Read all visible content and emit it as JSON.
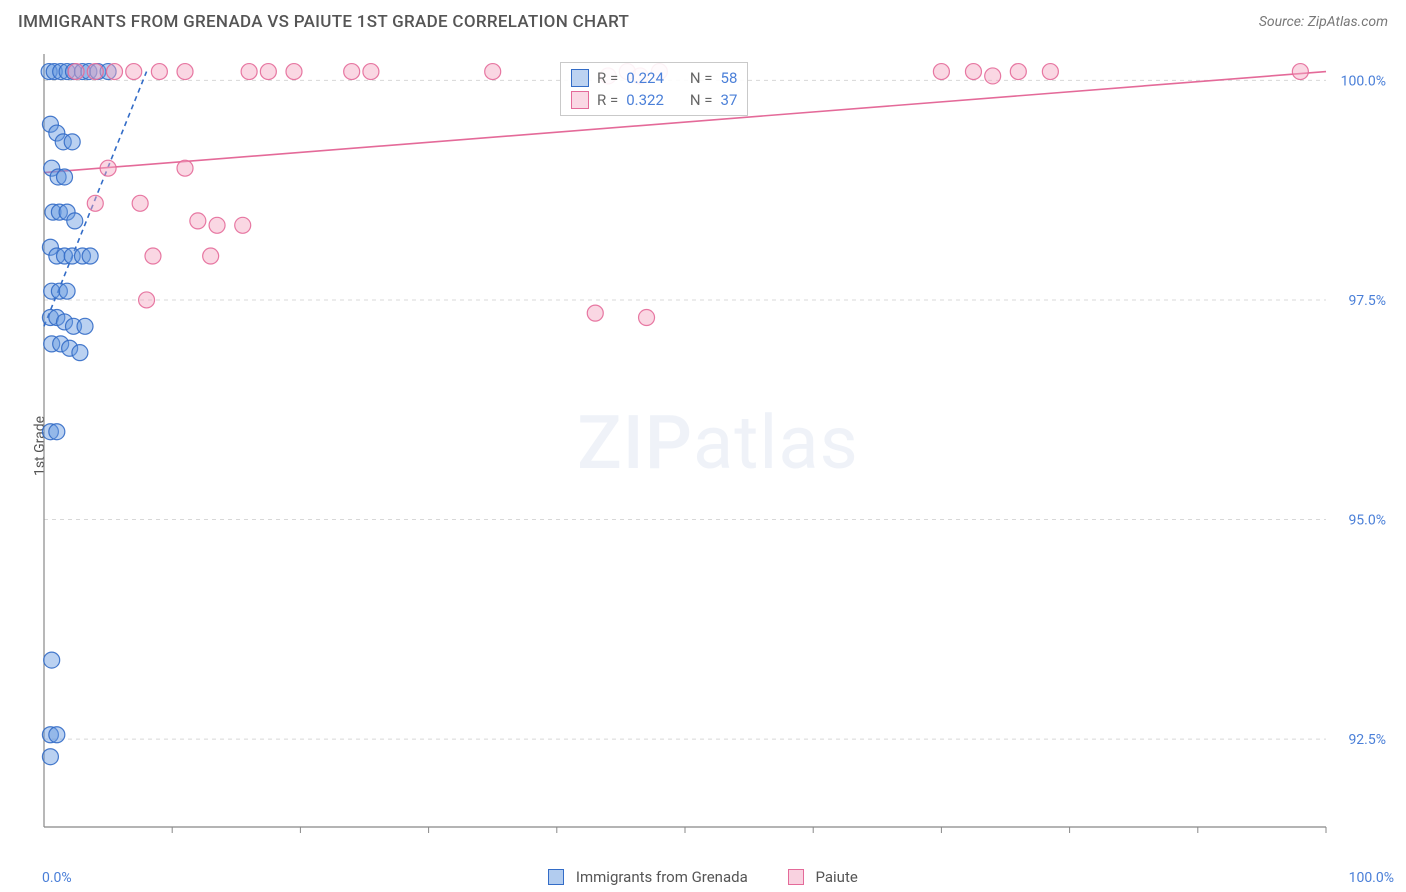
{
  "title": "IMMIGRANTS FROM GRENADA VS PAIUTE 1ST GRADE CORRELATION CHART",
  "source": "Source: ZipAtlas.com",
  "watermark_zip": "ZIP",
  "watermark_atlas": "atlas",
  "yaxis_label": "1st Grade",
  "chart": {
    "type": "scatter",
    "background_color": "#ffffff",
    "grid_color": "#d8d8d8",
    "axis_color": "#888888",
    "xlim": [
      0,
      100
    ],
    "ylim": [
      91.5,
      100.3
    ],
    "x_tick_positions": [
      10,
      20,
      30,
      40,
      50,
      60,
      70,
      80,
      90,
      100
    ],
    "y_ticks": [
      {
        "value": 92.5,
        "label": "92.5%"
      },
      {
        "value": 95.0,
        "label": "95.0%"
      },
      {
        "value": 97.5,
        "label": "97.5%"
      },
      {
        "value": 100.0,
        "label": "100.0%"
      }
    ],
    "x_range_labels": {
      "min": "0.0%",
      "max": "100.0%"
    },
    "marker_radius": 8,
    "marker_opacity": 0.45,
    "line_width": 1.6,
    "series": [
      {
        "id": "grenada",
        "name": "Immigrants from Grenada",
        "fill_color": "#6699e0",
        "stroke_color": "#336cc7",
        "R": 0.224,
        "N": 58,
        "trend": {
          "x1": 0,
          "y1": 97.2,
          "x2": 8,
          "y2": 100.1,
          "dashed": true
        },
        "points": [
          [
            0.4,
            100.1
          ],
          [
            0.8,
            100.1
          ],
          [
            1.3,
            100.1
          ],
          [
            1.8,
            100.1
          ],
          [
            2.3,
            100.1
          ],
          [
            3.0,
            100.1
          ],
          [
            3.5,
            100.1
          ],
          [
            4.2,
            100.1
          ],
          [
            5.0,
            100.1
          ],
          [
            0.5,
            99.5
          ],
          [
            1.0,
            99.4
          ],
          [
            1.5,
            99.3
          ],
          [
            2.2,
            99.3
          ],
          [
            0.6,
            99.0
          ],
          [
            1.1,
            98.9
          ],
          [
            1.6,
            98.9
          ],
          [
            0.7,
            98.5
          ],
          [
            1.2,
            98.5
          ],
          [
            1.8,
            98.5
          ],
          [
            2.4,
            98.4
          ],
          [
            0.5,
            98.1
          ],
          [
            1.0,
            98.0
          ],
          [
            1.6,
            98.0
          ],
          [
            2.2,
            98.0
          ],
          [
            3.0,
            98.0
          ],
          [
            3.6,
            98.0
          ],
          [
            0.6,
            97.6
          ],
          [
            1.2,
            97.6
          ],
          [
            1.8,
            97.6
          ],
          [
            0.5,
            97.3
          ],
          [
            1.0,
            97.3
          ],
          [
            1.6,
            97.25
          ],
          [
            2.3,
            97.2
          ],
          [
            3.2,
            97.2
          ],
          [
            0.6,
            97.0
          ],
          [
            1.3,
            97.0
          ],
          [
            2.0,
            96.95
          ],
          [
            2.8,
            96.9
          ],
          [
            0.5,
            96.0
          ],
          [
            1.0,
            96.0
          ],
          [
            0.6,
            93.4
          ],
          [
            0.5,
            92.55
          ],
          [
            1.0,
            92.55
          ],
          [
            0.5,
            92.3
          ]
        ]
      },
      {
        "id": "paiute",
        "name": "Paiute",
        "fill_color": "#f4a6c2",
        "stroke_color": "#e46a99",
        "R": 0.322,
        "N": 37,
        "trend": {
          "x1": 0,
          "y1": 98.95,
          "x2": 100,
          "y2": 100.1,
          "dashed": false
        },
        "points": [
          [
            2.5,
            100.1
          ],
          [
            4.0,
            100.1
          ],
          [
            5.5,
            100.1
          ],
          [
            7.0,
            100.1
          ],
          [
            9.0,
            100.1
          ],
          [
            11.0,
            100.1
          ],
          [
            16.0,
            100.1
          ],
          [
            17.5,
            100.1
          ],
          [
            19.5,
            100.1
          ],
          [
            24.0,
            100.1
          ],
          [
            25.5,
            100.1
          ],
          [
            35.0,
            100.1
          ],
          [
            44.0,
            100.05
          ],
          [
            45.5,
            100.1
          ],
          [
            46.5,
            100.05
          ],
          [
            48.0,
            100.1
          ],
          [
            70.0,
            100.1
          ],
          [
            72.5,
            100.1
          ],
          [
            74.0,
            100.05
          ],
          [
            76.0,
            100.1
          ],
          [
            78.5,
            100.1
          ],
          [
            98.0,
            100.1
          ],
          [
            5.0,
            99.0
          ],
          [
            11.0,
            99.0
          ],
          [
            4.0,
            98.6
          ],
          [
            12.0,
            98.4
          ],
          [
            13.5,
            98.35
          ],
          [
            15.5,
            98.35
          ],
          [
            7.5,
            98.6
          ],
          [
            8.5,
            98.0
          ],
          [
            13.0,
            98.0
          ],
          [
            8.0,
            97.5
          ],
          [
            43.0,
            97.35
          ],
          [
            47.0,
            97.3
          ]
        ]
      }
    ],
    "stat_legend": {
      "rows": [
        {
          "series": "grenada",
          "r_label": "R =",
          "r_value": "0.224",
          "n_label": "N =",
          "n_value": "58"
        },
        {
          "series": "paiute",
          "r_label": "R =",
          "r_value": "0.322",
          "n_label": "N =",
          "n_value": "37"
        }
      ]
    }
  }
}
